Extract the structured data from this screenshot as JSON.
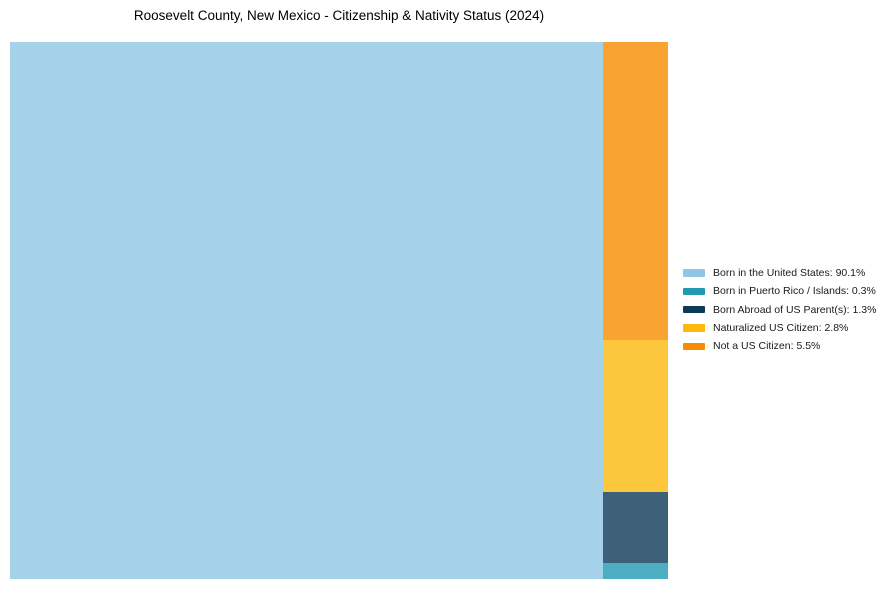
{
  "title": "Roosevelt County, New Mexico - Citizenship & Nativity Status (2024)",
  "colors": {
    "background": "#ffffff",
    "born_us": "#8FC6E4",
    "born_pr_islands": "#2199B4",
    "born_abroad": "#0D3A56",
    "naturalized": "#FDB90D",
    "not_citizen": "#F78C00"
  },
  "chart_data": {
    "type": "treemap",
    "title": "Roosevelt County, New Mexico - Citizenship & Nativity Status (2024)",
    "legend_position": "right",
    "value_suffix": "%",
    "block_opacity": 0.8,
    "items": [
      {
        "label": "Born in the United States",
        "value": 90.1,
        "color": "#8FC6E4"
      },
      {
        "label": "Born in Puerto Rico / Islands",
        "value": 0.3,
        "color": "#2199B4"
      },
      {
        "label": "Born Abroad of US Parent(s)",
        "value": 1.3,
        "color": "#0D3A56"
      },
      {
        "label": "Naturalized US Citizen",
        "value": 2.8,
        "color": "#FDB90D"
      },
      {
        "label": "Not a US Citizen",
        "value": 5.5,
        "color": "#F78C00"
      }
    ]
  }
}
